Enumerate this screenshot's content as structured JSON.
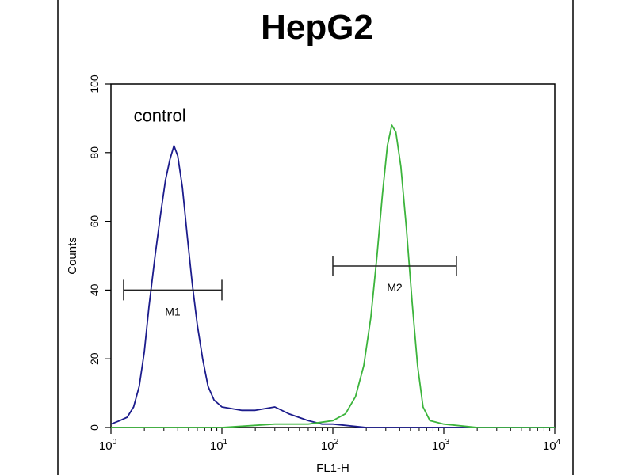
{
  "chart_data": {
    "type": "line",
    "title": "HepG2",
    "xlabel": "FL1-H",
    "ylabel": "Counts",
    "x_scale": "log",
    "xlim": [
      1,
      10000
    ],
    "ylim": [
      0,
      100
    ],
    "x_ticks": [
      {
        "value": 1,
        "base": "10",
        "exp": "0"
      },
      {
        "value": 10,
        "base": "10",
        "exp": "1"
      },
      {
        "value": 100,
        "base": "10",
        "exp": "2"
      },
      {
        "value": 1000,
        "base": "10",
        "exp": "3"
      },
      {
        "value": 10000,
        "base": "10",
        "exp": "4"
      }
    ],
    "y_ticks": [
      0,
      20,
      40,
      60,
      80,
      100
    ],
    "grid": false,
    "legend": "none",
    "annotations": [
      {
        "text": "control",
        "x": 1.6,
        "y": 89
      }
    ],
    "series": [
      {
        "name": "control",
        "color": "#1c1c8c",
        "points": [
          [
            1,
            1
          ],
          [
            1.2,
            2
          ],
          [
            1.4,
            3
          ],
          [
            1.6,
            6
          ],
          [
            1.8,
            12
          ],
          [
            2.0,
            22
          ],
          [
            2.2,
            35
          ],
          [
            2.5,
            50
          ],
          [
            2.8,
            62
          ],
          [
            3.1,
            72
          ],
          [
            3.4,
            78
          ],
          [
            3.7,
            82
          ],
          [
            4.0,
            79
          ],
          [
            4.4,
            70
          ],
          [
            4.9,
            55
          ],
          [
            5.4,
            42
          ],
          [
            6.0,
            30
          ],
          [
            6.7,
            20
          ],
          [
            7.5,
            12
          ],
          [
            8.5,
            8
          ],
          [
            10,
            6
          ],
          [
            15,
            5
          ],
          [
            20,
            5
          ],
          [
            30,
            6
          ],
          [
            40,
            4
          ],
          [
            60,
            2
          ],
          [
            80,
            1
          ],
          [
            100,
            1
          ],
          [
            200,
            0
          ],
          [
            1000,
            0
          ],
          [
            10000,
            0
          ]
        ]
      },
      {
        "name": "",
        "color": "#3cb43c",
        "points": [
          [
            1,
            0
          ],
          [
            10,
            0
          ],
          [
            30,
            1
          ],
          [
            60,
            1
          ],
          [
            100,
            2
          ],
          [
            130,
            4
          ],
          [
            160,
            9
          ],
          [
            190,
            18
          ],
          [
            220,
            32
          ],
          [
            250,
            50
          ],
          [
            280,
            68
          ],
          [
            310,
            82
          ],
          [
            340,
            88
          ],
          [
            370,
            86
          ],
          [
            410,
            76
          ],
          [
            460,
            58
          ],
          [
            520,
            36
          ],
          [
            580,
            18
          ],
          [
            650,
            6
          ],
          [
            750,
            2
          ],
          [
            1000,
            1
          ],
          [
            2000,
            0
          ],
          [
            10000,
            0
          ]
        ]
      }
    ],
    "markers": [
      {
        "label": "M1",
        "x_start": 1.3,
        "x_end": 10,
        "y": 40
      },
      {
        "label": "M2",
        "x_start": 100,
        "x_end": 1300,
        "y": 47
      }
    ]
  }
}
